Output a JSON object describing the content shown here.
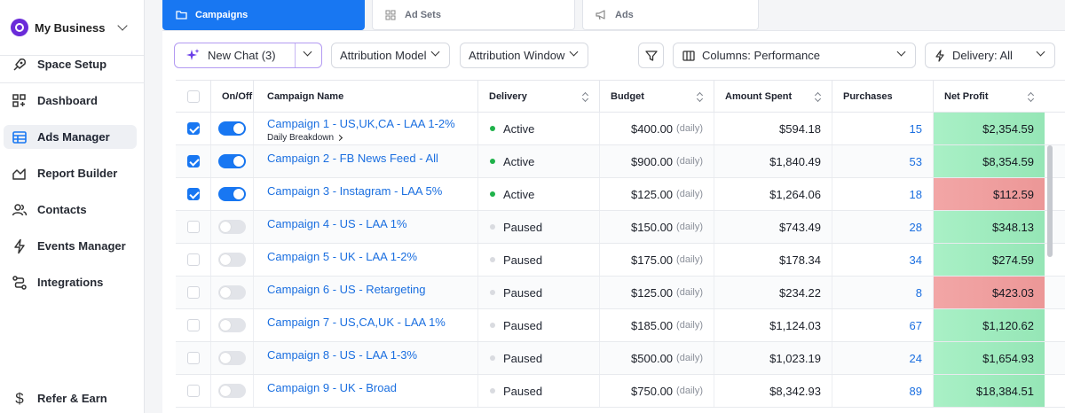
{
  "sidebar": {
    "business_name": "My Business",
    "space_setup": "Space Setup",
    "items": [
      {
        "label": "Dashboard",
        "icon": "dashboard-icon"
      },
      {
        "label": "Ads Manager",
        "icon": "table-icon"
      },
      {
        "label": "Report Builder",
        "icon": "chart-icon"
      },
      {
        "label": "Contacts",
        "icon": "contacts-icon"
      },
      {
        "label": "Events Manager",
        "icon": "lightning-icon"
      },
      {
        "label": "Integrations",
        "icon": "integrations-icon"
      }
    ],
    "refer": "Refer & Earn"
  },
  "tabs": [
    {
      "label": "Campaigns",
      "icon": "folder-icon"
    },
    {
      "label": "Ad Sets",
      "icon": "grid-icon"
    },
    {
      "label": "Ads",
      "icon": "megaphone-icon"
    }
  ],
  "toolbar": {
    "new_chat": "New Chat (3)",
    "attribution_model": "Attribution Model",
    "attribution_window": "Attribution Window",
    "columns": "Columns: Performance",
    "delivery": "Delivery: All"
  },
  "table": {
    "headers": {
      "onoff": "On/Off",
      "name": "Campaign Name",
      "delivery": "Delivery",
      "budget": "Budget",
      "spent": "Amount Spent",
      "purchases": "Purchases",
      "profit": "Net Profit"
    },
    "daily_label": "(daily)",
    "daily_breakdown": "Daily Breakdown",
    "rows": [
      {
        "checked": true,
        "on": true,
        "name": "Campaign 1 - US,UK,CA - LAA 1-2%",
        "delivery": "Active",
        "budget": "$400.00",
        "spent": "$594.18",
        "purchases": "15",
        "profit": "$2,354.59",
        "profit_tone": "positive"
      },
      {
        "checked": true,
        "on": true,
        "name": "Campaign 2 - FB News Feed - All",
        "delivery": "Active",
        "budget": "$900.00",
        "spent": "$1,840.49",
        "purchases": "53",
        "profit": "$8,354.59",
        "profit_tone": "positive"
      },
      {
        "checked": true,
        "on": true,
        "name": "Campaign 3 - Instagram - LAA 5%",
        "delivery": "Active",
        "budget": "$125.00",
        "spent": "$1,264.06",
        "purchases": "18",
        "profit": "$112.59",
        "profit_tone": "negative"
      },
      {
        "checked": false,
        "on": false,
        "name": "Campaign 4 - US - LAA 1%",
        "delivery": "Paused",
        "budget": "$150.00",
        "spent": "$743.49",
        "purchases": "28",
        "profit": "$348.13",
        "profit_tone": "positive"
      },
      {
        "checked": false,
        "on": false,
        "name": "Campaign 5 - UK - LAA 1-2%",
        "delivery": "Paused",
        "budget": "$175.00",
        "spent": "$178.34",
        "purchases": "34",
        "profit": "$274.59",
        "profit_tone": "positive"
      },
      {
        "checked": false,
        "on": false,
        "name": "Campaign 6 - US - Retargeting",
        "delivery": "Paused",
        "budget": "$125.00",
        "spent": "$234.22",
        "purchases": "8",
        "profit": "$423.03",
        "profit_tone": "negative"
      },
      {
        "checked": false,
        "on": false,
        "name": "Campaign 7 - US,CA,UK - LAA 1%",
        "delivery": "Paused",
        "budget": "$185.00",
        "spent": "$1,124.03",
        "purchases": "67",
        "profit": "$1,120.62",
        "profit_tone": "positive"
      },
      {
        "checked": false,
        "on": false,
        "name": "Campaign 8 - US - LAA 1-3%",
        "delivery": "Paused",
        "budget": "$500.00",
        "spent": "$1,023.19",
        "purchases": "24",
        "profit": "$1,654.93",
        "profit_tone": "positive"
      },
      {
        "checked": false,
        "on": false,
        "name": "Campaign 9 - UK - Broad",
        "delivery": "Paused",
        "budget": "$750.00",
        "spent": "$8,342.93",
        "purchases": "89",
        "profit": "$18,384.51",
        "profit_tone": "positive"
      }
    ]
  },
  "colors": {
    "accent": "#1877f2",
    "active_dot": "#1fb24a",
    "paused_dot": "#d9dbe0",
    "positive": "#a6ecc3",
    "negative": "#ef9c9c"
  }
}
